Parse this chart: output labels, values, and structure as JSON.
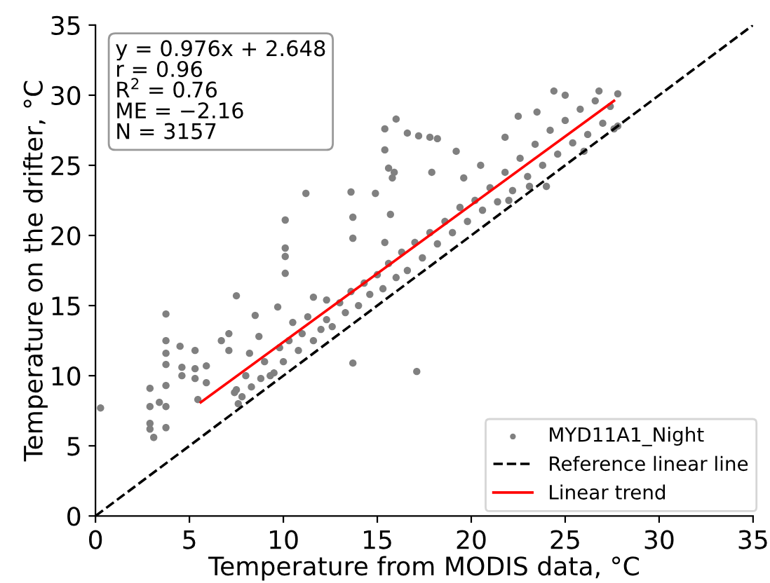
{
  "chart_data": {
    "type": "scatter",
    "xlabel": "Temperature from MODIS data, °C",
    "ylabel": "Temperature on the drifter, °C",
    "xlim": [
      0,
      35
    ],
    "ylim": [
      0,
      35
    ],
    "xticks": [
      0,
      5,
      10,
      15,
      20,
      25,
      30,
      35
    ],
    "yticks": [
      0,
      5,
      10,
      15,
      20,
      25,
      30,
      35
    ],
    "grid": false,
    "legend": "bottom right",
    "annotations": [
      "y = 0.976x + 2.648",
      "r = 0.96",
      "R$^{2}$ = 0.76",
      "ME = −2.16",
      "N = 3157"
    ],
    "series": [
      {
        "name": "MYD11A1_Night",
        "color": "#808080",
        "marker": "circle",
        "x": [
          0.27,
          2.9,
          2.9,
          2.9,
          2.9,
          3.1,
          3.75,
          3.75,
          3.75,
          3.75,
          3.75,
          3.75,
          3.75,
          3.4,
          4.5,
          4.6,
          4.6,
          5.3,
          5.3,
          5.3,
          5.9,
          5.9,
          5.45,
          6.7,
          7.1,
          7.1,
          7.5,
          7.6,
          7.4,
          8.5,
          8.7,
          8.2,
          9.7,
          9.3,
          10.1,
          10.1,
          13.7,
          17.1,
          11.6,
          12.3,
          10.1,
          10.1,
          11.2,
          13.6,
          13.7,
          13.7,
          14.9,
          15.4,
          15.4,
          16.0,
          15.6,
          15.8,
          15.7,
          16.6,
          17.2,
          17.8,
          15.4,
          18.2,
          17.9,
          15.9,
          24.4,
          26.8,
          27.8,
          27.8,
          24.0,
          23.1,
          19.2,
          19.6,
          21.8,
          22.5,
          7.5,
          7.8,
          8.0,
          8.3,
          8.8,
          9.0,
          9.5,
          9.8,
          10.0,
          10.3,
          10.5,
          10.8,
          11.0,
          11.3,
          11.6,
          12.0,
          12.3,
          12.6,
          13.0,
          13.3,
          13.6,
          14.0,
          14.3,
          14.6,
          15.0,
          15.3,
          15.6,
          16.0,
          16.3,
          16.6,
          17.0,
          17.4,
          17.8,
          18.2,
          18.6,
          19.0,
          19.4,
          19.8,
          20.2,
          20.6,
          21.0,
          21.4,
          21.8,
          22.2,
          22.6,
          23.0,
          23.4,
          23.8,
          24.2,
          24.6,
          25.0,
          25.4,
          25.8,
          26.2,
          26.6,
          27.0,
          27.4,
          27.6,
          20.5,
          23.5,
          25.0,
          26.0,
          22.0
        ],
        "values": [
          7.7,
          9.1,
          7.8,
          6.6,
          6.2,
          5.6,
          14.4,
          12.5,
          11.6,
          10.8,
          9.3,
          7.8,
          6.3,
          8.1,
          12.1,
          10.6,
          10.0,
          11.8,
          10.5,
          9.8,
          10.7,
          9.5,
          8.3,
          12.5,
          13.0,
          11.8,
          15.7,
          8.0,
          8.8,
          14.3,
          12.8,
          11.6,
          14.9,
          10.0,
          17.3,
          18.5,
          10.9,
          10.3,
          15.6,
          15.4,
          21.1,
          19.1,
          23.0,
          23.1,
          21.3,
          19.8,
          23.0,
          27.6,
          26.1,
          28.3,
          24.8,
          24.1,
          21.5,
          27.3,
          27.1,
          27.0,
          19.5,
          26.9,
          24.5,
          24.5,
          30.3,
          30.3,
          30.1,
          27.8,
          23.5,
          23.5,
          26.0,
          24.1,
          27.0,
          28.5,
          9.0,
          8.5,
          10.0,
          9.2,
          9.8,
          11.0,
          10.2,
          12.0,
          11.0,
          12.5,
          13.8,
          11.8,
          13.0,
          14.2,
          12.5,
          13.3,
          14.0,
          13.5,
          15.2,
          14.5,
          16.0,
          15.0,
          16.6,
          15.8,
          17.2,
          16.2,
          18.0,
          17.0,
          18.8,
          17.5,
          19.5,
          18.4,
          20.2,
          19.4,
          21.0,
          20.2,
          22.0,
          21.0,
          22.5,
          21.8,
          23.4,
          22.4,
          24.5,
          23.2,
          25.5,
          24.2,
          26.5,
          25.0,
          27.5,
          25.8,
          28.2,
          26.6,
          29.0,
          27.2,
          29.6,
          28.0,
          29.2,
          27.6,
          25.0,
          28.8,
          30.0,
          26.0,
          22.5
        ]
      },
      {
        "name": "Reference linear line",
        "type": "line",
        "color": "#000000",
        "line_style": "dashed",
        "marker": "none",
        "x": [
          0,
          35
        ],
        "values": [
          0,
          35
        ]
      },
      {
        "name": "Linear trend",
        "type": "line",
        "color": "#ff0000",
        "line_style": "solid",
        "marker": "none",
        "x": [
          5.6,
          27.6
        ],
        "values": [
          8.1,
          29.6
        ]
      }
    ]
  }
}
